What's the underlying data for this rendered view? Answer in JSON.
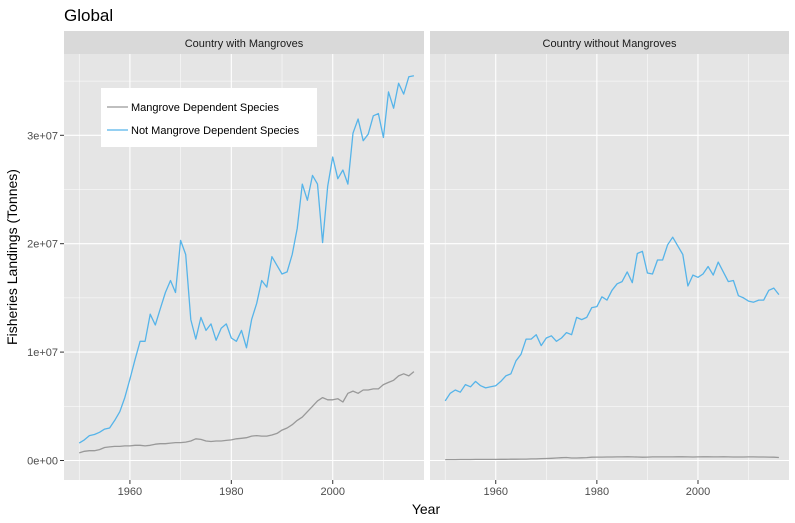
{
  "chart_data": {
    "type": "line",
    "title": "Global",
    "xlabel": "Year",
    "ylabel": "Fisheries Landings (Tonnes)",
    "xlim": [
      1947,
      2018
    ],
    "ylim": [
      -1800000,
      37500000
    ],
    "x_ticks": [
      1960,
      1980,
      2000
    ],
    "y_ticks": [
      0,
      10000000,
      20000000,
      30000000
    ],
    "y_tick_labels": [
      "0e+00",
      "1e+07",
      "2e+07",
      "3e+07"
    ],
    "grid": true,
    "legend_placement": "top-left inside first panel",
    "colors": {
      "Mangrove Dependent Species": "#999999",
      "Not Mangrove Dependent Species": "#56B4E9",
      "panel_bg": "#e5e5e5",
      "strip_bg": "#d9d9d9",
      "grid": "#ffffff"
    },
    "legend": [
      "Mangrove Dependent Species",
      "Not Mangrove Dependent Species"
    ],
    "x": [
      1950,
      1951,
      1952,
      1953,
      1954,
      1955,
      1956,
      1957,
      1958,
      1959,
      1960,
      1961,
      1962,
      1963,
      1964,
      1965,
      1966,
      1967,
      1968,
      1969,
      1970,
      1971,
      1972,
      1973,
      1974,
      1975,
      1976,
      1977,
      1978,
      1979,
      1980,
      1981,
      1982,
      1983,
      1984,
      1985,
      1986,
      1987,
      1988,
      1989,
      1990,
      1991,
      1992,
      1993,
      1994,
      1995,
      1996,
      1997,
      1998,
      1999,
      2000,
      2001,
      2002,
      2003,
      2004,
      2005,
      2006,
      2007,
      2008,
      2009,
      2010,
      2011,
      2012,
      2013,
      2014,
      2015,
      2016
    ],
    "panels": [
      {
        "strip": "Country with Mangroves",
        "series": [
          {
            "name": "Mangrove Dependent Species",
            "values": [
              700000,
              850000,
              900000,
              900000,
              1000000,
              1200000,
              1250000,
              1300000,
              1300000,
              1350000,
              1350000,
              1400000,
              1400000,
              1350000,
              1400000,
              1500000,
              1550000,
              1550000,
              1600000,
              1650000,
              1650000,
              1700000,
              1800000,
              2000000,
              1950000,
              1800000,
              1750000,
              1800000,
              1800000,
              1850000,
              1900000,
              2000000,
              2050000,
              2100000,
              2250000,
              2300000,
              2250000,
              2250000,
              2350000,
              2500000,
              2800000,
              3000000,
              3300000,
              3700000,
              4000000,
              4500000,
              5000000,
              5500000,
              5800000,
              5600000,
              5600000,
              5700000,
              5400000,
              6200000,
              6400000,
              6200000,
              6500000,
              6500000,
              6600000,
              6600000,
              7000000,
              7200000,
              7400000,
              7800000,
              8000000,
              7800000,
              8200000
            ]
          },
          {
            "name": "Not Mangrove Dependent Species",
            "values": [
              1600000,
              1900000,
              2300000,
              2400000,
              2600000,
              2900000,
              3000000,
              3700000,
              4500000,
              5800000,
              7500000,
              9300000,
              11000000,
              11000000,
              13500000,
              12500000,
              14000000,
              15500000,
              16600000,
              15500000,
              20300000,
              19000000,
              13000000,
              11200000,
              13200000,
              12000000,
              12600000,
              11100000,
              12200000,
              12600000,
              11300000,
              11000000,
              12000000,
              10400000,
              13000000,
              14500000,
              16600000,
              16000000,
              18800000,
              18000000,
              17200000,
              17400000,
              19000000,
              21400000,
              25500000,
              24000000,
              26300000,
              25500000,
              20100000,
              25300000,
              28000000,
              26000000,
              26800000,
              25500000,
              30200000,
              31500000,
              29500000,
              30100000,
              31800000,
              32000000,
              29800000,
              34000000,
              32500000,
              34800000,
              33800000,
              35400000,
              35500000
            ]
          }
        ]
      },
      {
        "strip": "Country without Mangroves",
        "series": [
          {
            "name": "Mangrove Dependent Species",
            "values": [
              80000,
              80000,
              80000,
              90000,
              90000,
              90000,
              100000,
              100000,
              100000,
              100000,
              100000,
              110000,
              110000,
              120000,
              120000,
              130000,
              130000,
              150000,
              150000,
              170000,
              180000,
              200000,
              230000,
              260000,
              280000,
              230000,
              230000,
              250000,
              270000,
              300000,
              310000,
              310000,
              320000,
              320000,
              330000,
              330000,
              340000,
              330000,
              320000,
              300000,
              310000,
              330000,
              330000,
              330000,
              330000,
              330000,
              340000,
              340000,
              330000,
              320000,
              330000,
              340000,
              340000,
              330000,
              330000,
              340000,
              330000,
              320000,
              320000,
              320000,
              330000,
              330000,
              320000,
              320000,
              310000,
              300000,
              280000
            ]
          },
          {
            "name": "Not Mangrove Dependent Species",
            "values": [
              5500000,
              6200000,
              6500000,
              6300000,
              7000000,
              6800000,
              7300000,
              6900000,
              6700000,
              6800000,
              6900000,
              7300000,
              7800000,
              8000000,
              9200000,
              9800000,
              11200000,
              11200000,
              11600000,
              10600000,
              11300000,
              11500000,
              11000000,
              11300000,
              11800000,
              11600000,
              13200000,
              13000000,
              13200000,
              14100000,
              14200000,
              15100000,
              14800000,
              15700000,
              16300000,
              16500000,
              17400000,
              16400000,
              19100000,
              19300000,
              17300000,
              17200000,
              18500000,
              18500000,
              19900000,
              20600000,
              19800000,
              19000000,
              16100000,
              17100000,
              16900000,
              17200000,
              17900000,
              17100000,
              18300000,
              17400000,
              16500000,
              16600000,
              15200000,
              15000000,
              14700000,
              14600000,
              14800000,
              14800000,
              15700000,
              15900000,
              15300000
            ]
          }
        ]
      }
    ]
  }
}
